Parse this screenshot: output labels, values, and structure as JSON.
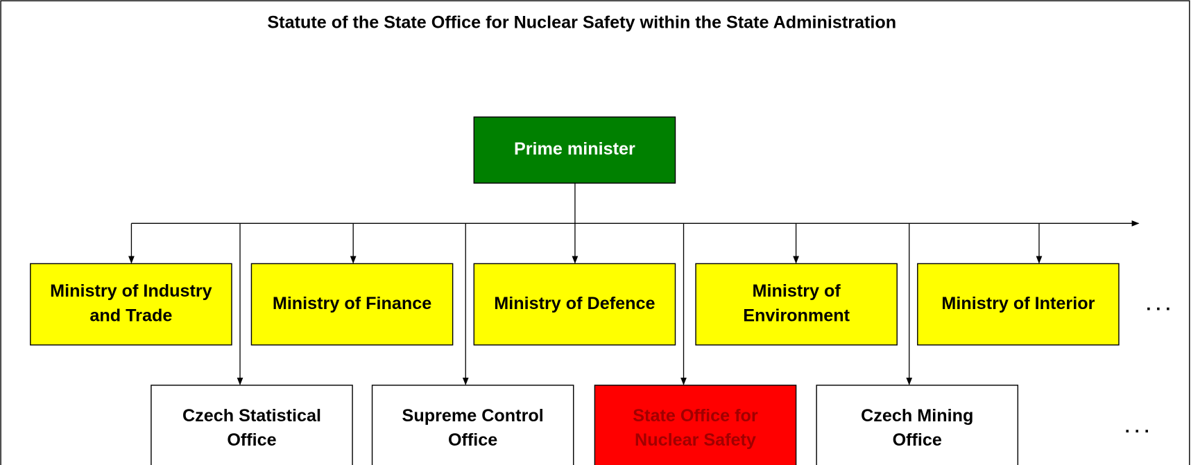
{
  "title": "Statute of the State Office for Nuclear Safety within the State Administration",
  "top": {
    "lines": [
      "Prime minister"
    ]
  },
  "ministries": [
    {
      "lines": [
        "Ministry of Industry",
        "and Trade"
      ]
    },
    {
      "lines": [
        "Ministry of Finance"
      ]
    },
    {
      "lines": [
        "Ministry of Defence"
      ]
    },
    {
      "lines": [
        "Ministry of",
        "Environment"
      ]
    },
    {
      "lines": [
        "Ministry of Interior"
      ]
    }
  ],
  "ministries_more": ". . .",
  "offices": [
    {
      "lines": [
        "Czech Statistical",
        "Office"
      ]
    },
    {
      "lines": [
        "Supreme Control",
        "Office"
      ]
    },
    {
      "lines": [
        "State Office for",
        "Nuclear Safety"
      ]
    },
    {
      "lines": [
        "Czech Mining",
        "Office"
      ]
    }
  ],
  "offices_more": ". . ."
}
